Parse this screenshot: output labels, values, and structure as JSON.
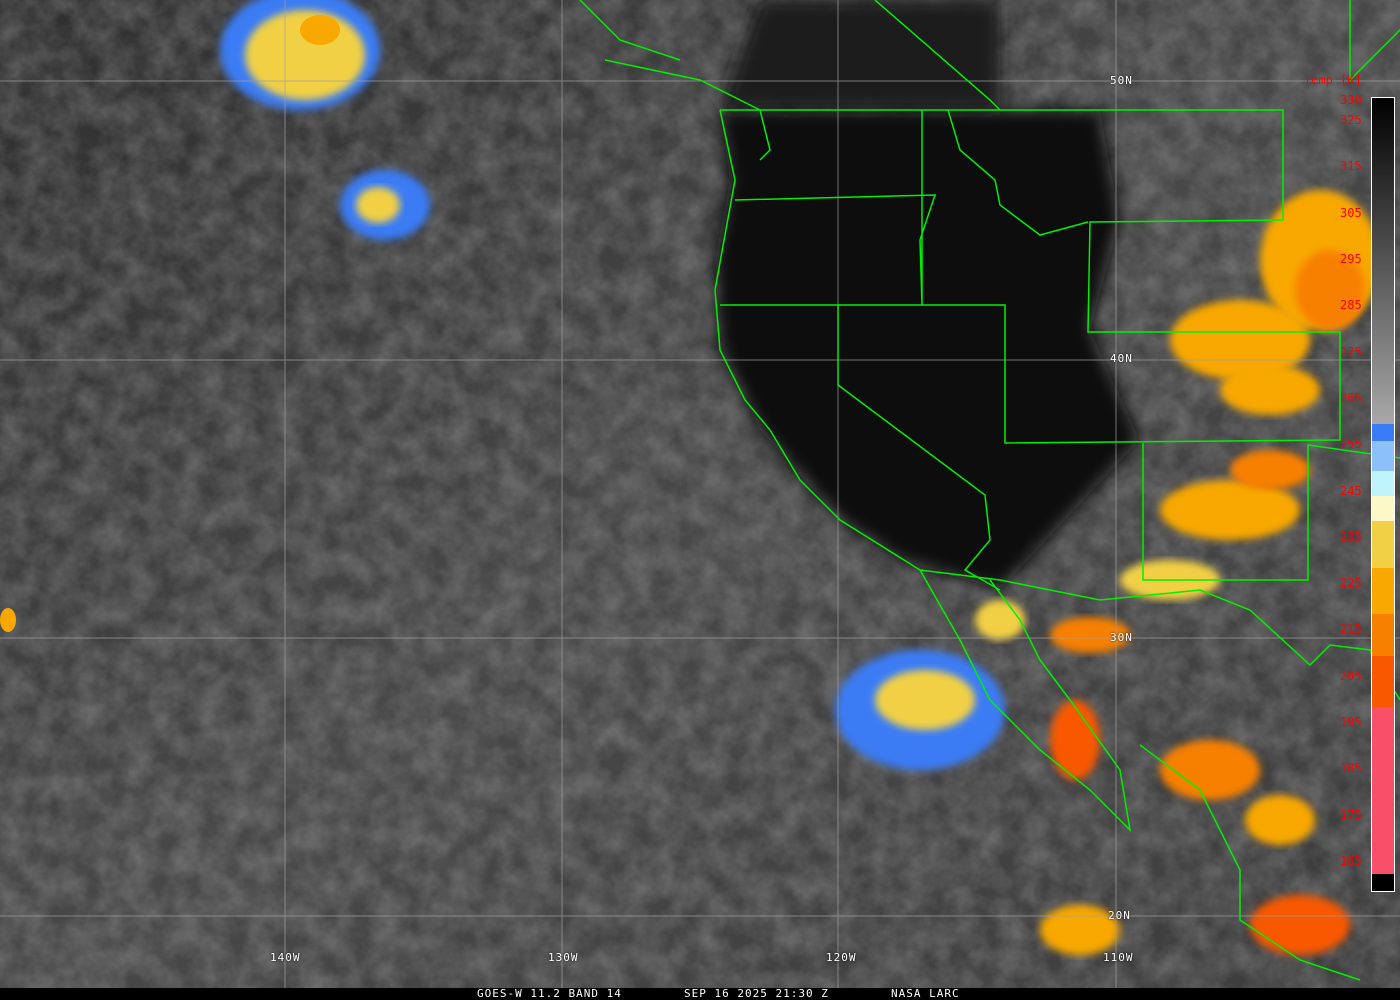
{
  "caption": {
    "product": "GOES-W 11.2 BAND 14",
    "datetime": "SEP 16 2025 21:30 Z",
    "source": "NASA LARC"
  },
  "latitude_labels": [
    "50N",
    "40N",
    "30N",
    "20N"
  ],
  "longitude_labels": [
    "140W",
    "130W",
    "120W",
    "110W"
  ],
  "colorbar": {
    "title": "Temp [K]",
    "ticks": [
      "330",
      "325",
      "315",
      "305",
      "295",
      "285",
      "275",
      "265",
      "255",
      "245",
      "235",
      "225",
      "215",
      "205",
      "195",
      "185",
      "175",
      "165"
    ],
    "colors": {
      "gray_top": "#000000",
      "gray_bottom": "#a8a8a8",
      "blue": "#3a7cf5",
      "light_blue": "#8cc0f8",
      "pale_blue": "#c0f4fc",
      "cream": "#fcf8c8",
      "yellow": "#f2d045",
      "orange": "#f8a800",
      "dark_orange": "#f88000",
      "red_orange": "#f85800",
      "pink": "#f85068"
    }
  },
  "colors": {
    "boundaries": "#00f000",
    "grid": "#a0a0a0",
    "label_red": "#ff0000"
  }
}
